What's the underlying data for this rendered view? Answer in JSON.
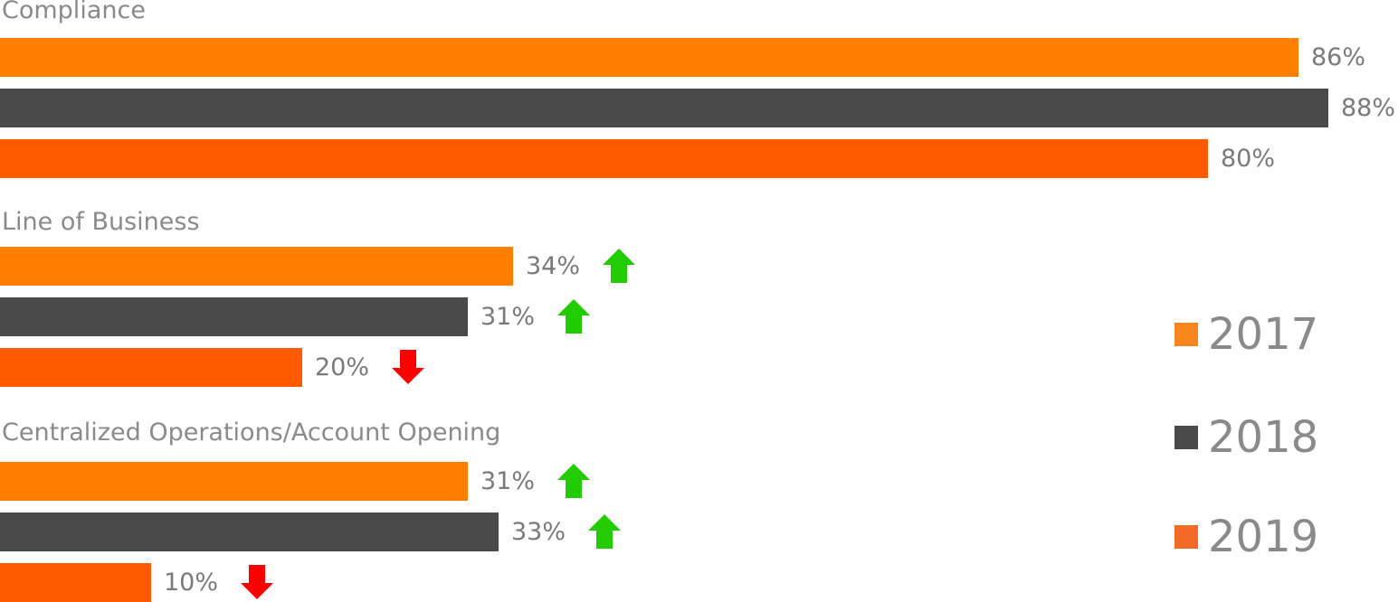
{
  "chart_data": {
    "type": "bar",
    "orientation": "horizontal",
    "categories": [
      "Compliance",
      "Line of Business",
      "Centralized Operations/Account Opening"
    ],
    "series": [
      {
        "name": "2017",
        "color": "#ff8000",
        "values": [
          86,
          34,
          31
        ],
        "labels": [
          "86%",
          "34%",
          "31%"
        ]
      },
      {
        "name": "2018",
        "color": "#4a4a4a",
        "values": [
          88,
          31,
          33
        ],
        "labels": [
          "88%",
          "31%",
          "33%"
        ]
      },
      {
        "name": "2019",
        "color": "#ff5a00",
        "values": [
          80,
          20,
          10
        ],
        "labels": [
          "80%",
          "20%",
          "10%"
        ]
      }
    ],
    "trend_arrows": [
      [
        null,
        null,
        null
      ],
      [
        "up",
        "up",
        "down"
      ],
      [
        "up",
        "up",
        "down"
      ]
    ],
    "xlim": [
      0,
      88
    ],
    "legend": {
      "position": "right",
      "items": [
        {
          "label": "2017",
          "color": "#f7861f"
        },
        {
          "label": "2018",
          "color": "#4a4a4a"
        },
        {
          "label": "2019",
          "color": "#f26a26"
        }
      ]
    },
    "grid": false
  },
  "arrow_colors": {
    "up": "#22cc00",
    "down": "#ff0000"
  }
}
